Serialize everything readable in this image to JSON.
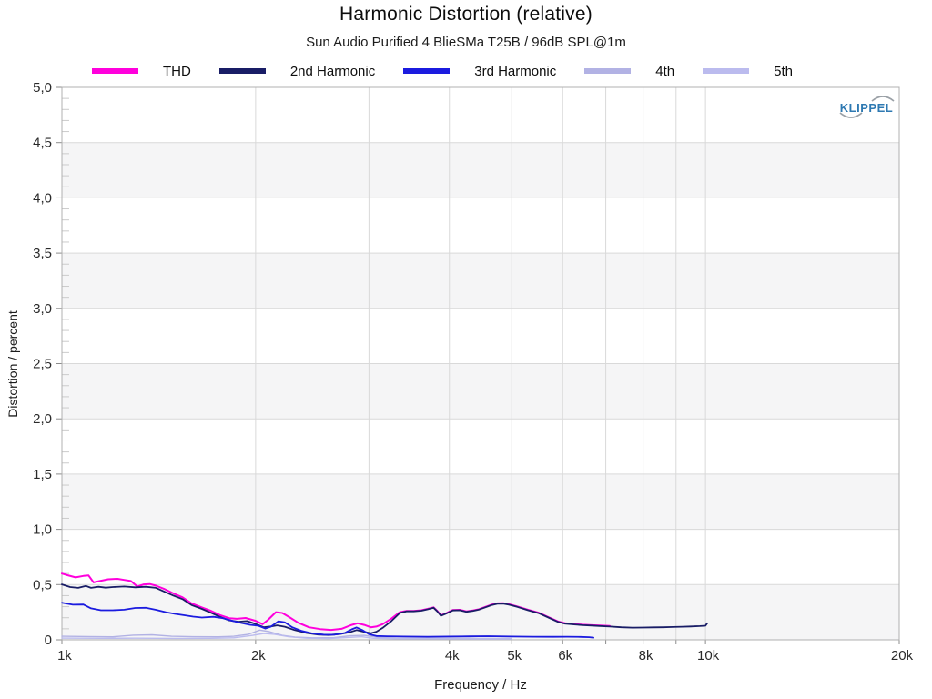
{
  "page": {
    "title": "Harmonic Distortion (relative)",
    "subtitle": "Sun Audio Purified 4 BlieSMa T25B / 96dB SPL@1m"
  },
  "branding": {
    "logo_text": "KLIPPEL",
    "logo_color": "#2e79b2",
    "arc_color": "#9aa0a6"
  },
  "chart_data": {
    "type": "line",
    "title": "Harmonic Distortion (relative)",
    "subtitle": "Sun Audio Purified 4 BlieSMa T25B / 96dB SPL@1m",
    "xlabel": "Frequency / Hz",
    "ylabel": "Distortion / percent",
    "x_scale": "log",
    "xlim": [
      1000,
      20000
    ],
    "ylim": [
      0,
      5
    ],
    "grid": true,
    "legend_position": "top",
    "background_bands": [
      "#ffffff",
      "#f5f5f6"
    ],
    "colors": {
      "gridline": "#d9d9d9",
      "border": "#b0b0b0",
      "major_tick": "#8c8c8c",
      "minor_tick": "#cbcbcb",
      "tick_text": "#2a2a2a"
    },
    "y_ticks": [
      {
        "v": 5.0,
        "label": "5,0"
      },
      {
        "v": 4.5,
        "label": "4,5"
      },
      {
        "v": 4.0,
        "label": "4,0"
      },
      {
        "v": 3.5,
        "label": "3,5"
      },
      {
        "v": 3.0,
        "label": "3,0"
      },
      {
        "v": 2.5,
        "label": "2,5"
      },
      {
        "v": 2.0,
        "label": "2,0"
      },
      {
        "v": 1.5,
        "label": "1,5"
      },
      {
        "v": 1.0,
        "label": "1,0"
      },
      {
        "v": 0.5,
        "label": "0,5"
      },
      {
        "v": 0.0,
        "label": "0"
      }
    ],
    "y_minor_step": 0.1,
    "x_ticks": [
      {
        "f": 1000,
        "label": "1k"
      },
      {
        "f": 2000,
        "label": "2k"
      },
      {
        "f": 4000,
        "label": "4k"
      },
      {
        "f": 5000,
        "label": "5k"
      },
      {
        "f": 6000,
        "label": "6k"
      },
      {
        "f": 8000,
        "label": "8k"
      },
      {
        "f": 10000,
        "label": "10k"
      },
      {
        "f": 20000,
        "label": "20k"
      }
    ],
    "x_gridlines": [
      2000,
      3000,
      4000,
      5000,
      6000,
      7000,
      8000,
      9000,
      10000,
      20000
    ],
    "draw_order": [
      3,
      4,
      0,
      1,
      2
    ],
    "series": [
      {
        "name": "THD",
        "color": "#ff00dc",
        "width": 2.0,
        "points": [
          [
            1000,
            0.6
          ],
          [
            1020,
            0.585
          ],
          [
            1050,
            0.565
          ],
          [
            1080,
            0.578
          ],
          [
            1100,
            0.582
          ],
          [
            1120,
            0.52
          ],
          [
            1150,
            0.535
          ],
          [
            1180,
            0.548
          ],
          [
            1220,
            0.552
          ],
          [
            1250,
            0.542
          ],
          [
            1280,
            0.532
          ],
          [
            1310,
            0.482
          ],
          [
            1340,
            0.502
          ],
          [
            1370,
            0.505
          ],
          [
            1400,
            0.49
          ],
          [
            1440,
            0.462
          ],
          [
            1490,
            0.42
          ],
          [
            1540,
            0.385
          ],
          [
            1590,
            0.33
          ],
          [
            1650,
            0.293
          ],
          [
            1700,
            0.265
          ],
          [
            1760,
            0.224
          ],
          [
            1820,
            0.196
          ],
          [
            1870,
            0.19
          ],
          [
            1930,
            0.198
          ],
          [
            2000,
            0.172
          ],
          [
            2050,
            0.142
          ],
          [
            2090,
            0.18
          ],
          [
            2150,
            0.25
          ],
          [
            2200,
            0.243
          ],
          [
            2260,
            0.203
          ],
          [
            2330,
            0.154
          ],
          [
            2420,
            0.114
          ],
          [
            2520,
            0.097
          ],
          [
            2620,
            0.09
          ],
          [
            2720,
            0.1
          ],
          [
            2820,
            0.135
          ],
          [
            2880,
            0.15
          ],
          [
            2950,
            0.135
          ],
          [
            3020,
            0.114
          ],
          [
            3080,
            0.12
          ],
          [
            3150,
            0.142
          ],
          [
            3250,
            0.192
          ],
          [
            3350,
            0.25
          ],
          [
            3430,
            0.262
          ],
          [
            3520,
            0.262
          ],
          [
            3620,
            0.268
          ],
          [
            3700,
            0.28
          ],
          [
            3780,
            0.294
          ],
          [
            3830,
            0.262
          ],
          [
            3880,
            0.222
          ],
          [
            3950,
            0.24
          ],
          [
            4050,
            0.27
          ],
          [
            4150,
            0.272
          ],
          [
            4250,
            0.258
          ],
          [
            4350,
            0.266
          ],
          [
            4450,
            0.278
          ],
          [
            4550,
            0.298
          ],
          [
            4650,
            0.318
          ],
          [
            4750,
            0.33
          ],
          [
            4850,
            0.332
          ],
          [
            4950,
            0.322
          ],
          [
            5100,
            0.302
          ],
          [
            5300,
            0.272
          ],
          [
            5500,
            0.246
          ],
          [
            5700,
            0.206
          ],
          [
            5900,
            0.166
          ],
          [
            6050,
            0.151
          ],
          [
            6250,
            0.143
          ],
          [
            6450,
            0.137
          ],
          [
            6650,
            0.133
          ],
          [
            6850,
            0.129
          ],
          [
            7100,
            0.125
          ]
        ]
      },
      {
        "name": "2nd Harmonic",
        "color": "#191d66",
        "width": 1.8,
        "points": [
          [
            1000,
            0.502
          ],
          [
            1030,
            0.478
          ],
          [
            1060,
            0.47
          ],
          [
            1090,
            0.488
          ],
          [
            1110,
            0.47
          ],
          [
            1140,
            0.48
          ],
          [
            1170,
            0.472
          ],
          [
            1200,
            0.478
          ],
          [
            1250,
            0.483
          ],
          [
            1300,
            0.475
          ],
          [
            1350,
            0.48
          ],
          [
            1400,
            0.47
          ],
          [
            1440,
            0.438
          ],
          [
            1490,
            0.4
          ],
          [
            1540,
            0.368
          ],
          [
            1590,
            0.315
          ],
          [
            1650,
            0.28
          ],
          [
            1700,
            0.248
          ],
          [
            1760,
            0.208
          ],
          [
            1820,
            0.176
          ],
          [
            1880,
            0.163
          ],
          [
            1940,
            0.17
          ],
          [
            2000,
            0.143
          ],
          [
            2060,
            0.114
          ],
          [
            2110,
            0.121
          ],
          [
            2160,
            0.131
          ],
          [
            2220,
            0.119
          ],
          [
            2300,
            0.088
          ],
          [
            2400,
            0.062
          ],
          [
            2500,
            0.048
          ],
          [
            2600,
            0.044
          ],
          [
            2700,
            0.052
          ],
          [
            2800,
            0.068
          ],
          [
            2870,
            0.088
          ],
          [
            2950,
            0.072
          ],
          [
            3020,
            0.06
          ],
          [
            3080,
            0.073
          ],
          [
            3150,
            0.108
          ],
          [
            3250,
            0.17
          ],
          [
            3350,
            0.243
          ],
          [
            3430,
            0.258
          ],
          [
            3520,
            0.258
          ],
          [
            3620,
            0.264
          ],
          [
            3700,
            0.276
          ],
          [
            3780,
            0.29
          ],
          [
            3830,
            0.258
          ],
          [
            3880,
            0.218
          ],
          [
            3950,
            0.236
          ],
          [
            4050,
            0.266
          ],
          [
            4150,
            0.268
          ],
          [
            4250,
            0.254
          ],
          [
            4350,
            0.262
          ],
          [
            4450,
            0.274
          ],
          [
            4550,
            0.294
          ],
          [
            4650,
            0.314
          ],
          [
            4750,
            0.326
          ],
          [
            4850,
            0.328
          ],
          [
            4950,
            0.318
          ],
          [
            5100,
            0.298
          ],
          [
            5300,
            0.268
          ],
          [
            5500,
            0.242
          ],
          [
            5700,
            0.202
          ],
          [
            5900,
            0.162
          ],
          [
            6050,
            0.147
          ],
          [
            6250,
            0.139
          ],
          [
            6450,
            0.133
          ],
          [
            6650,
            0.129
          ],
          [
            6850,
            0.125
          ],
          [
            7100,
            0.12
          ],
          [
            7400,
            0.114
          ],
          [
            7700,
            0.11
          ],
          [
            8000,
            0.111
          ],
          [
            8300,
            0.113
          ],
          [
            8600,
            0.114
          ],
          [
            8900,
            0.116
          ],
          [
            9200,
            0.119
          ],
          [
            9500,
            0.121
          ],
          [
            9800,
            0.124
          ],
          [
            10000,
            0.128
          ],
          [
            10060,
            0.15
          ]
        ]
      },
      {
        "name": "3rd Harmonic",
        "color": "#1b1bdf",
        "width": 1.8,
        "points": [
          [
            1000,
            0.335
          ],
          [
            1040,
            0.318
          ],
          [
            1080,
            0.32
          ],
          [
            1110,
            0.285
          ],
          [
            1150,
            0.268
          ],
          [
            1200,
            0.268
          ],
          [
            1250,
            0.273
          ],
          [
            1300,
            0.288
          ],
          [
            1350,
            0.29
          ],
          [
            1400,
            0.272
          ],
          [
            1450,
            0.25
          ],
          [
            1500,
            0.235
          ],
          [
            1550,
            0.222
          ],
          [
            1600,
            0.21
          ],
          [
            1650,
            0.202
          ],
          [
            1720,
            0.208
          ],
          [
            1780,
            0.196
          ],
          [
            1840,
            0.172
          ],
          [
            1900,
            0.152
          ],
          [
            1960,
            0.136
          ],
          [
            2020,
            0.128
          ],
          [
            2070,
            0.102
          ],
          [
            2110,
            0.118
          ],
          [
            2170,
            0.168
          ],
          [
            2220,
            0.158
          ],
          [
            2280,
            0.114
          ],
          [
            2360,
            0.08
          ],
          [
            2450,
            0.058
          ],
          [
            2550,
            0.047
          ],
          [
            2650,
            0.046
          ],
          [
            2750,
            0.062
          ],
          [
            2820,
            0.095
          ],
          [
            2870,
            0.112
          ],
          [
            2930,
            0.088
          ],
          [
            3000,
            0.05
          ],
          [
            3080,
            0.035
          ],
          [
            3200,
            0.032
          ],
          [
            3400,
            0.03
          ],
          [
            3700,
            0.028
          ],
          [
            4000,
            0.03
          ],
          [
            4300,
            0.031
          ],
          [
            4600,
            0.033
          ],
          [
            5000,
            0.03
          ],
          [
            5400,
            0.028
          ],
          [
            5800,
            0.027
          ],
          [
            6100,
            0.028
          ],
          [
            6400,
            0.026
          ],
          [
            6600,
            0.024
          ],
          [
            6700,
            0.02
          ]
        ]
      },
      {
        "name": "4th",
        "color": "#b2b2e4",
        "width": 1.4,
        "points": [
          [
            1000,
            0.032
          ],
          [
            1100,
            0.03
          ],
          [
            1200,
            0.027
          ],
          [
            1290,
            0.042
          ],
          [
            1380,
            0.045
          ],
          [
            1480,
            0.032
          ],
          [
            1600,
            0.028
          ],
          [
            1750,
            0.027
          ],
          [
            1850,
            0.032
          ],
          [
            1950,
            0.05
          ],
          [
            2030,
            0.088
          ],
          [
            2100,
            0.074
          ],
          [
            2200,
            0.04
          ],
          [
            2300,
            0.025
          ],
          [
            2450,
            0.018
          ],
          [
            2650,
            0.02
          ],
          [
            2800,
            0.036
          ],
          [
            2950,
            0.04
          ],
          [
            3100,
            0.022
          ],
          [
            3300,
            0.016
          ],
          [
            3600,
            0.015
          ],
          [
            4000,
            0.016
          ],
          [
            4400,
            0.013
          ],
          [
            4700,
            0.012
          ],
          [
            5000,
            0.012
          ]
        ]
      },
      {
        "name": "5th",
        "color": "#bbbbee",
        "width": 1.4,
        "points": [
          [
            1000,
            0.016
          ],
          [
            1150,
            0.014
          ],
          [
            1300,
            0.015
          ],
          [
            1500,
            0.013
          ],
          [
            1700,
            0.014
          ],
          [
            1850,
            0.018
          ],
          [
            1980,
            0.04
          ],
          [
            2060,
            0.058
          ],
          [
            2140,
            0.05
          ],
          [
            2250,
            0.028
          ],
          [
            2400,
            0.015
          ],
          [
            2600,
            0.012
          ],
          [
            2800,
            0.022
          ],
          [
            2920,
            0.028
          ],
          [
            3050,
            0.014
          ],
          [
            3300,
            0.01
          ],
          [
            3700,
            0.01
          ],
          [
            4100,
            0.009
          ],
          [
            4500,
            0.008
          ],
          [
            5000,
            0.008
          ]
        ]
      }
    ]
  }
}
